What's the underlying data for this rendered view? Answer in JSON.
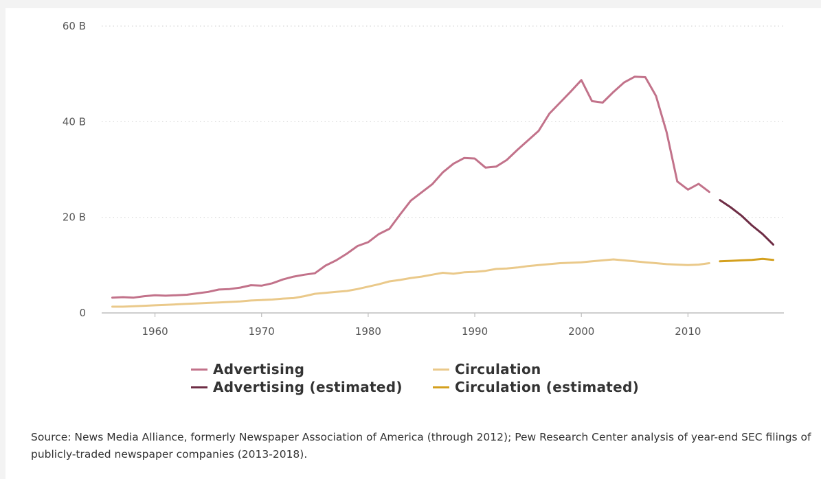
{
  "chart_data": {
    "type": "line",
    "title": "",
    "xlabel": "",
    "ylabel": "",
    "xlim": [
      1955,
      2019
    ],
    "ylim": [
      0,
      60
    ],
    "y_ticks": [
      {
        "value": 0,
        "label": "0"
      },
      {
        "value": 20,
        "label": "20 B"
      },
      {
        "value": 40,
        "label": "40 B"
      },
      {
        "value": 60,
        "label": "60 B"
      }
    ],
    "x_ticks": [
      {
        "value": 1960,
        "label": "1960"
      },
      {
        "value": 1970,
        "label": "1970"
      },
      {
        "value": 1980,
        "label": "1980"
      },
      {
        "value": 1990,
        "label": "1990"
      },
      {
        "value": 2000,
        "label": "2000"
      },
      {
        "value": 2010,
        "label": "2010"
      }
    ],
    "grid": "horizontal dotted",
    "legend_placement": "bottom",
    "series": [
      {
        "name": "Advertising",
        "color": "#c2728a",
        "dashed": false,
        "x": [
          1956,
          1957,
          1958,
          1959,
          1960,
          1961,
          1962,
          1963,
          1964,
          1965,
          1966,
          1967,
          1968,
          1969,
          1970,
          1971,
          1972,
          1973,
          1974,
          1975,
          1976,
          1977,
          1978,
          1979,
          1980,
          1981,
          1982,
          1983,
          1984,
          1985,
          1986,
          1987,
          1988,
          1989,
          1990,
          1991,
          1992,
          1993,
          1994,
          1995,
          1996,
          1997,
          1998,
          1999,
          2000,
          2001,
          2002,
          2003,
          2004,
          2005,
          2006,
          2007,
          2008,
          2009,
          2010,
          2011,
          2012
        ],
        "values": [
          3.2,
          3.3,
          3.2,
          3.5,
          3.7,
          3.6,
          3.7,
          3.8,
          4.1,
          4.4,
          4.9,
          5.0,
          5.3,
          5.8,
          5.7,
          6.2,
          7.0,
          7.6,
          8.0,
          8.3,
          9.9,
          11.0,
          12.4,
          14.0,
          14.8,
          16.5,
          17.6,
          20.6,
          23.5,
          25.2,
          26.9,
          29.4,
          31.2,
          32.4,
          32.3,
          30.4,
          30.6,
          32.0,
          34.1,
          36.1,
          38.1,
          41.7,
          44.0,
          46.3,
          48.7,
          44.3,
          44.0,
          46.2,
          48.2,
          49.4,
          49.3,
          45.4,
          37.8,
          27.5,
          25.8,
          27.0,
          25.3
        ]
      },
      {
        "name": "Advertising (estimated)",
        "color": "#6e2d45",
        "dashed": true,
        "x": [
          2013,
          2014,
          2015,
          2016,
          2017,
          2018
        ],
        "values": [
          23.6,
          22.1,
          20.4,
          18.3,
          16.5,
          14.3
        ]
      },
      {
        "name": "Circulation",
        "color": "#eac98a",
        "dashed": false,
        "x": [
          1956,
          1957,
          1958,
          1959,
          1960,
          1961,
          1962,
          1963,
          1964,
          1965,
          1966,
          1967,
          1968,
          1969,
          1970,
          1971,
          1972,
          1973,
          1974,
          1975,
          1976,
          1977,
          1978,
          1979,
          1980,
          1981,
          1982,
          1983,
          1984,
          1985,
          1986,
          1987,
          1988,
          1989,
          1990,
          1991,
          1992,
          1993,
          1994,
          1995,
          1996,
          1997,
          1998,
          1999,
          2000,
          2001,
          2002,
          2003,
          2004,
          2005,
          2006,
          2007,
          2008,
          2009,
          2010,
          2011,
          2012
        ],
        "values": [
          1.3,
          1.3,
          1.4,
          1.5,
          1.6,
          1.7,
          1.8,
          1.9,
          2.0,
          2.1,
          2.2,
          2.3,
          2.4,
          2.6,
          2.7,
          2.8,
          3.0,
          3.1,
          3.5,
          4.0,
          4.2,
          4.4,
          4.6,
          5.0,
          5.5,
          6.0,
          6.6,
          6.9,
          7.3,
          7.6,
          8.0,
          8.4,
          8.2,
          8.5,
          8.6,
          8.8,
          9.2,
          9.3,
          9.5,
          9.8,
          10.0,
          10.2,
          10.4,
          10.5,
          10.6,
          10.8,
          11.0,
          11.2,
          11.0,
          10.8,
          10.6,
          10.4,
          10.2,
          10.1,
          10.0,
          10.1,
          10.4
        ]
      },
      {
        "name": "Circulation (estimated)",
        "color": "#d4a01e",
        "dashed": true,
        "x": [
          2013,
          2014,
          2015,
          2016,
          2017,
          2018
        ],
        "values": [
          10.8,
          10.9,
          11.0,
          11.1,
          11.3,
          11.1
        ]
      }
    ]
  },
  "legend": {
    "items": [
      {
        "label": "Advertising",
        "color": "#c2728a"
      },
      {
        "label": "Advertising (estimated)",
        "color": "#6e2d45"
      },
      {
        "label": "Circulation",
        "color": "#eac98a"
      },
      {
        "label": "Circulation (estimated)",
        "color": "#d4a01e"
      }
    ]
  },
  "source_text": "Source: News Media Alliance, formerly Newspaper Association of America (through 2012); Pew Research Center analysis of year-end SEC filings of publicly-traded newspaper companies (2013-2018)."
}
